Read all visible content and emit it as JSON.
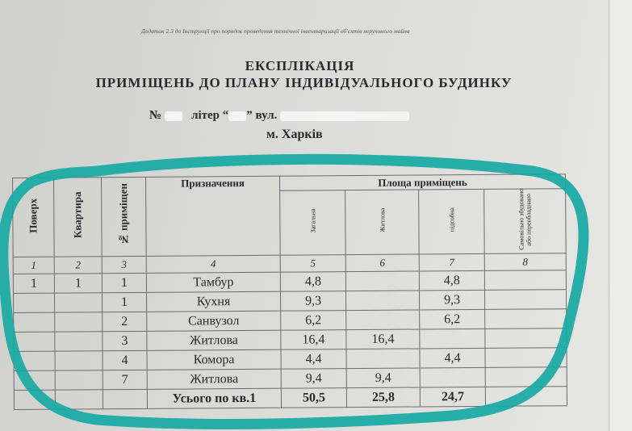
{
  "header_note": "Додаток 2.3 до Інструкції про порядок проведення технічної інвентаризації об'єктів нерухомого майна",
  "title_line1": "ЕКСПЛІКАЦІЯ",
  "title_line2": "ПРИМІЩЕНЬ ДО ПЛАНУ ІНДИВІДУАЛЬНОГО БУДИНКУ",
  "address": {
    "no_label": "№",
    "liter_label": "літер “",
    "street_label": "” вул.",
    "city": "м. Харків"
  },
  "table": {
    "headers": {
      "floor": "Поверх",
      "apartment": "Квартира",
      "room_no": "№ приміщен",
      "purpose": "Призначення",
      "area": "Площа приміщень",
      "total": "Загальна",
      "living": "Житлова",
      "auxiliary": "підсобна",
      "unauthorized": "Самовільно збудовано або переобладнано"
    },
    "col_numbers": [
      "1",
      "2",
      "3",
      "4",
      "5",
      "6",
      "7",
      "8"
    ],
    "rows": [
      {
        "floor": "1",
        "apt": "1",
        "no": "1",
        "purpose": "Тамбур",
        "total": "4,8",
        "living": "",
        "aux": "4,8"
      },
      {
        "floor": "",
        "apt": "",
        "no": "1",
        "purpose": "Кухня",
        "total": "9,3",
        "living": "",
        "aux": "9,3"
      },
      {
        "floor": "",
        "apt": "",
        "no": "2",
        "purpose": "Санвузол",
        "total": "6,2",
        "living": "",
        "aux": "6,2"
      },
      {
        "floor": "",
        "apt": "",
        "no": "3",
        "purpose": "Житлова",
        "total": "16,4",
        "living": "16,4",
        "aux": ""
      },
      {
        "floor": "",
        "apt": "",
        "no": "4",
        "purpose": "Комора",
        "total": "4,4",
        "living": "",
        "aux": "4,4"
      },
      {
        "floor": "",
        "apt": "",
        "no": "7",
        "purpose": "Житлова",
        "total": "9,4",
        "living": "9,4",
        "aux": ""
      }
    ],
    "totals": {
      "label": "Усього по кв.1",
      "total": "50,5",
      "living": "25,8",
      "aux": "24,7"
    }
  },
  "colors": {
    "highlight": "#17a9a3",
    "paper": "#d8d8d5"
  }
}
